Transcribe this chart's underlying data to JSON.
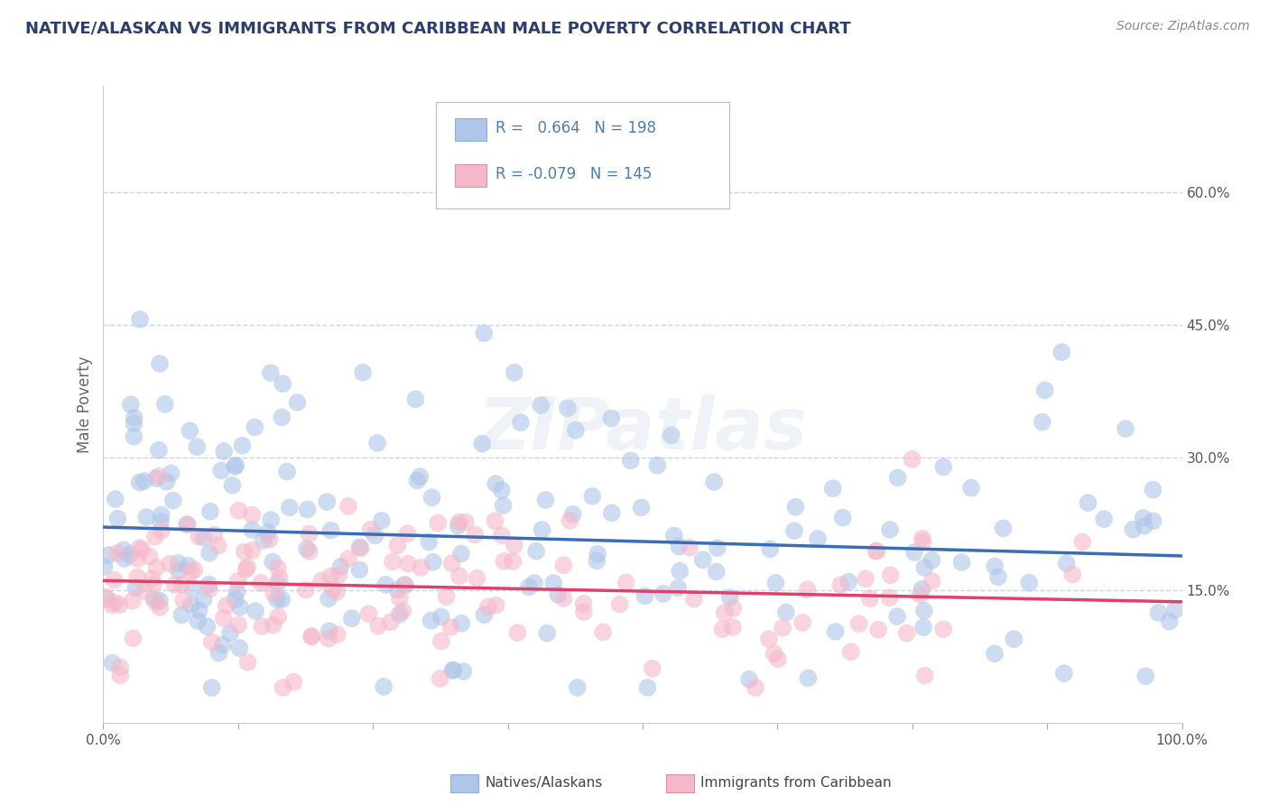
{
  "title": "NATIVE/ALASKAN VS IMMIGRANTS FROM CARIBBEAN MALE POVERTY CORRELATION CHART",
  "source": "Source: ZipAtlas.com",
  "ylabel": "Male Poverty",
  "y_ticks": [
    "15.0%",
    "30.0%",
    "45.0%",
    "60.0%"
  ],
  "y_ticks_vals": [
    0.15,
    0.3,
    0.45,
    0.6
  ],
  "legend_blue_r": "0.664",
  "legend_blue_n": "198",
  "legend_pink_r": "-0.079",
  "legend_pink_n": "145",
  "blue_color": "#aec6e8",
  "pink_color": "#f5b8c8",
  "blue_line_color": "#3a6db5",
  "pink_line_color": "#e0406a",
  "background_color": "#ffffff",
  "grid_color": "#c8d4e8",
  "watermark": "ZIPatlas",
  "title_color": "#2c3e6b",
  "source_color": "#888888",
  "legend_text_color": "#4a7db5"
}
